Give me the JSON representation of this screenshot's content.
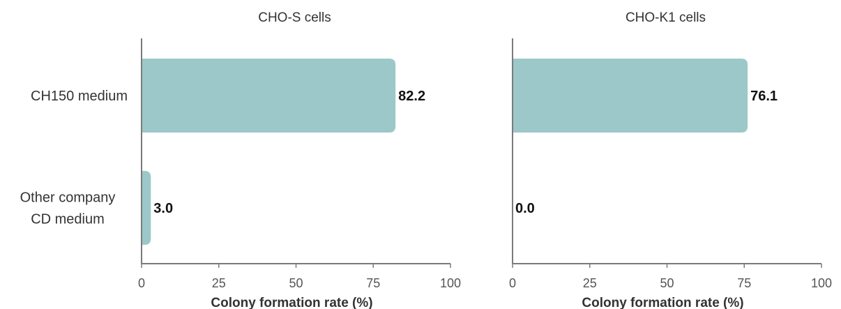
{
  "chart_data": [
    {
      "type": "bar",
      "orientation": "horizontal",
      "title": "CHO-S cells",
      "categories": [
        "CH150 medium",
        "Other company\nCD medium"
      ],
      "values": [
        82.2,
        3.0
      ],
      "value_labels": [
        "82.2",
        "3.0"
      ],
      "xlabel": "Colony formation rate (%)",
      "ylabel": "",
      "xlim": [
        0,
        100
      ],
      "xticks": [
        0,
        25,
        50,
        75,
        100
      ],
      "grid": false,
      "bar_color": "#9cc8c9"
    },
    {
      "type": "bar",
      "orientation": "horizontal",
      "title": "CHO-K1 cells",
      "categories": [
        "CH150 medium",
        "Other company\nCD medium"
      ],
      "values": [
        76.1,
        0.0
      ],
      "value_labels": [
        "76.1",
        "0.0"
      ],
      "xlabel": "Colony formation rate (%)",
      "ylabel": "",
      "xlim": [
        0,
        100
      ],
      "xticks": [
        0,
        25,
        50,
        75,
        100
      ],
      "grid": false,
      "bar_color": "#9cc8c9"
    }
  ],
  "colors": {
    "bar": "#9cc8c9",
    "axis": "#7a7a7a",
    "text": "#333333"
  }
}
